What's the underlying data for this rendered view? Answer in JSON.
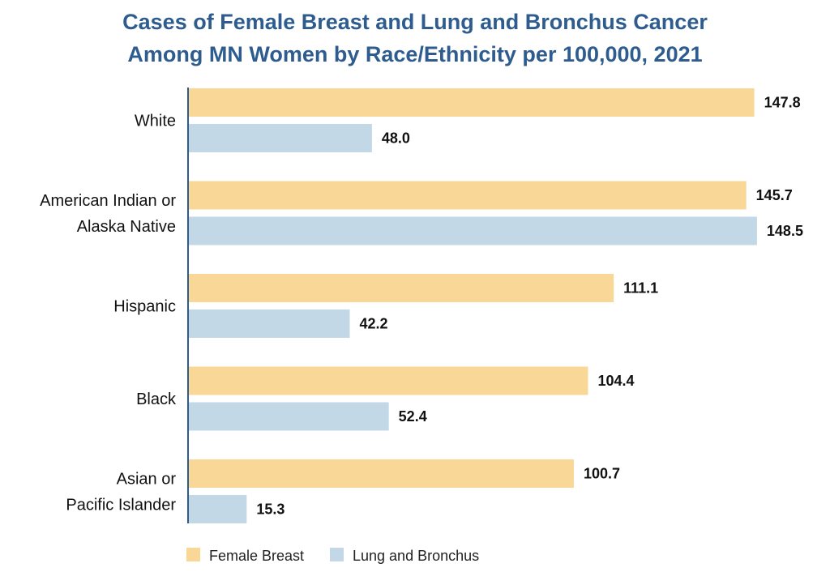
{
  "chart_data": {
    "type": "bar",
    "orientation": "horizontal",
    "title": "Cases of Female Breast and Lung and Bronchus Cancer Among MN Women by Race/Ethnicity per 100,000, 2021",
    "title_lines": [
      "Cases of Female Breast and Lung and Bronchus Cancer",
      "Among MN Women by Race/Ethnicity per 100,000, 2021"
    ],
    "xlabel": "",
    "ylabel": "",
    "xlim": [
      0,
      150
    ],
    "grid": false,
    "legend_position": "bottom-center",
    "categories": [
      "White",
      "American Indian or Alaska Native",
      "Hispanic",
      "Black",
      "Asian or Pacific Islander"
    ],
    "category_lines": [
      [
        "White"
      ],
      [
        "American Indian or",
        "Alaska Native"
      ],
      [
        "Hispanic"
      ],
      [
        "Black"
      ],
      [
        "Asian or",
        "Pacific Islander"
      ]
    ],
    "series": [
      {
        "name": "Female Breast",
        "color": "#f9d897",
        "values": [
          147.8,
          145.7,
          111.1,
          104.4,
          100.7
        ],
        "labels": [
          "147.8",
          "145.7",
          "111.1",
          "104.4",
          "100.7"
        ]
      },
      {
        "name": "Lung and Bronchus",
        "color": "#c3d8e6",
        "values": [
          48.0,
          148.5,
          42.2,
          52.4,
          15.3
        ],
        "labels": [
          "48.0",
          "148.5",
          "42.2",
          "52.4",
          "15.3"
        ]
      }
    ],
    "axis_color": "#2e5c8e"
  }
}
